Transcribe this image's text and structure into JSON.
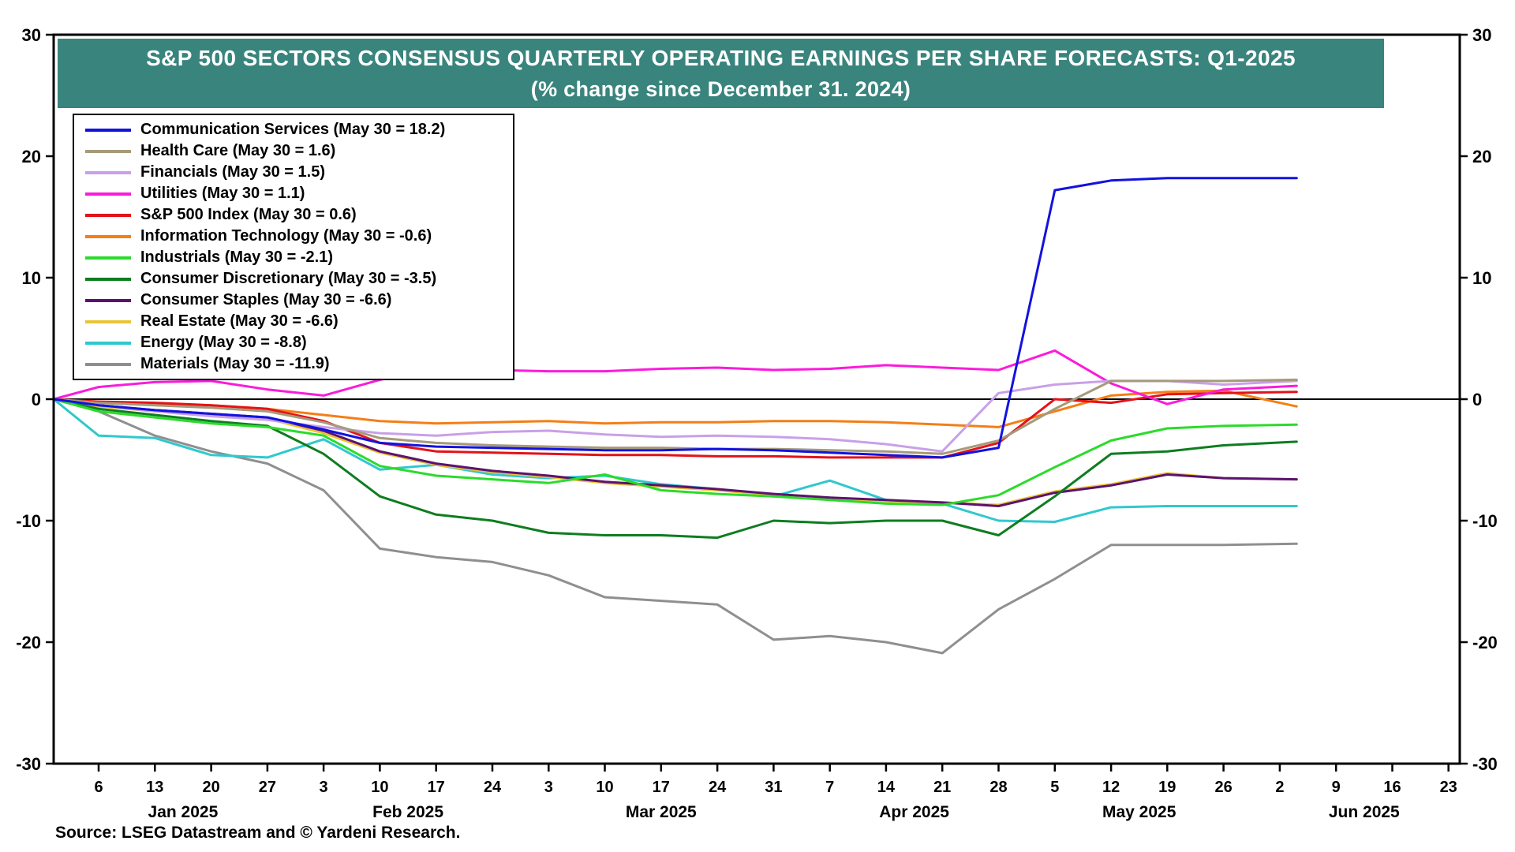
{
  "banner": {
    "title": "S&P 500 SECTORS CONSENSUS QUARTERLY OPERATING EARNINGS PER SHARE FORECASTS: Q1-2025",
    "subtitle": "(% change since December 31. 2024)",
    "background": "#39847D"
  },
  "source_note": "Source: LSEG Datastream and © Yardeni Research.",
  "chart_data": {
    "type": "line",
    "title": "S&P 500 SECTORS CONSENSUS QUARTERLY OPERATING EARNINGS PER SHARE FORECASTS: Q1-2025",
    "subtitle": "(% change since December 31. 2024)",
    "ylabel": "% change",
    "ylim": [
      -30,
      30
    ],
    "y_ticks": [
      30,
      20,
      10,
      0,
      -10,
      -20,
      -30
    ],
    "grid": false,
    "legend_position": "top-left",
    "x_range": [
      0.2,
      25.2
    ],
    "x_axis": {
      "tick_labels": [
        "6",
        "13",
        "20",
        "27",
        "3",
        "10",
        "17",
        "24",
        "3",
        "10",
        "17",
        "24",
        "31",
        "7",
        "14",
        "21",
        "28",
        "5",
        "12",
        "19",
        "26",
        "2",
        "9",
        "16",
        "23"
      ],
      "month_labels": [
        {
          "label": "Jan 2025",
          "week": 2.5
        },
        {
          "label": "Feb 2025",
          "week": 6.5
        },
        {
          "label": "Mar 2025",
          "week": 11
        },
        {
          "label": "Apr 2025",
          "week": 15.5
        },
        {
          "label": "May 2025",
          "week": 19.5
        },
        {
          "label": "Jun 2025",
          "week": 23.5
        }
      ]
    },
    "x_weeks": [
      0.2,
      1,
      2,
      3,
      4,
      5,
      6,
      7,
      8,
      9,
      10,
      11,
      12,
      13,
      14,
      15,
      16,
      17,
      18,
      19,
      20,
      21,
      22.3
    ],
    "series": [
      {
        "name": "Communication Services",
        "legend_label": "Communication Services (May 30 = 18.2)",
        "color": "#1212E0",
        "last_value": 18.2,
        "values": [
          0,
          -0.5,
          -0.9,
          -1.2,
          -1.5,
          -2.5,
          -3.6,
          -3.9,
          -4.0,
          -4.1,
          -4.2,
          -4.2,
          -4.1,
          -4.2,
          -4.4,
          -4.6,
          -4.8,
          -4.0,
          17.2,
          18.0,
          18.2,
          18.2,
          18.2
        ]
      },
      {
        "name": "Health Care",
        "legend_label": "Health Care (May 30 = 1.6)",
        "color": "#A69A7A",
        "last_value": 1.6,
        "values": [
          0,
          -0.3,
          -0.5,
          -0.7,
          -1.0,
          -1.9,
          -3.2,
          -3.6,
          -3.8,
          -3.9,
          -4.0,
          -4.0,
          -4.1,
          -4.1,
          -4.2,
          -4.3,
          -4.5,
          -3.4,
          -0.8,
          1.5,
          1.5,
          1.5,
          1.6
        ]
      },
      {
        "name": "Financials",
        "legend_label": "Financials (May 30 = 1.5)",
        "color": "#C9A0E8",
        "last_value": 1.5,
        "values": [
          0,
          -0.5,
          -1.0,
          -1.4,
          -1.7,
          -2.3,
          -2.8,
          -3.0,
          -2.7,
          -2.6,
          -2.9,
          -3.1,
          -3.0,
          -3.1,
          -3.3,
          -3.7,
          -4.3,
          0.5,
          1.2,
          1.5,
          1.5,
          1.2,
          1.5
        ]
      },
      {
        "name": "Utilities",
        "legend_label": "Utilities (May 30 = 1.1)",
        "color": "#FB1BDB",
        "last_value": 1.1,
        "values": [
          0,
          1.0,
          1.4,
          1.5,
          0.8,
          0.3,
          1.6,
          2.4,
          2.4,
          2.3,
          2.3,
          2.5,
          2.6,
          2.4,
          2.5,
          2.8,
          2.6,
          2.4,
          4.0,
          1.3,
          -0.4,
          0.8,
          1.1
        ]
      },
      {
        "name": "S&P 500 Index",
        "legend_label": "S&P 500 Index (May 30 = 0.6)",
        "color": "#E41219",
        "last_value": 0.6,
        "values": [
          0,
          -0.2,
          -0.3,
          -0.5,
          -0.8,
          -1.8,
          -3.6,
          -4.3,
          -4.4,
          -4.5,
          -4.6,
          -4.6,
          -4.7,
          -4.7,
          -4.8,
          -4.8,
          -4.8,
          -3.6,
          0.0,
          -0.3,
          0.4,
          0.5,
          0.6
        ]
      },
      {
        "name": "Information Technology",
        "legend_label": "Information Technology (May 30 = -0.6)",
        "color": "#F57E16",
        "last_value": -0.6,
        "values": [
          0,
          -0.3,
          -0.4,
          -0.5,
          -0.8,
          -1.3,
          -1.8,
          -2.0,
          -1.9,
          -1.8,
          -2.0,
          -1.9,
          -1.9,
          -1.8,
          -1.8,
          -1.9,
          -2.1,
          -2.3,
          -1.0,
          0.3,
          0.6,
          0.7,
          -0.6
        ]
      },
      {
        "name": "Industrials",
        "legend_label": "Industrials (May 30 = -2.1)",
        "color": "#2BDB2B",
        "last_value": -2.1,
        "values": [
          0,
          -1.0,
          -1.5,
          -2.0,
          -2.3,
          -3.0,
          -5.5,
          -6.3,
          -6.6,
          -6.9,
          -6.2,
          -7.5,
          -7.8,
          -8.0,
          -8.3,
          -8.6,
          -8.7,
          -7.9,
          -5.6,
          -3.4,
          -2.4,
          -2.2,
          -2.1
        ]
      },
      {
        "name": "Consumer Discretionary",
        "legend_label": "Consumer Discretionary (May 30 = -3.5)",
        "color": "#0E7D20",
        "last_value": -3.5,
        "values": [
          0,
          -0.8,
          -1.3,
          -1.8,
          -2.2,
          -4.5,
          -8.0,
          -9.5,
          -10.0,
          -11.0,
          -11.2,
          -11.2,
          -11.4,
          -10.0,
          -10.2,
          -10.0,
          -10.0,
          -11.2,
          -8.0,
          -4.5,
          -4.3,
          -3.8,
          -3.5
        ]
      },
      {
        "name": "Consumer Staples",
        "legend_label": "Consumer Staples (May 30 = -6.6)",
        "color": "#5C1270",
        "last_value": -6.6,
        "values": [
          0,
          -0.5,
          -0.9,
          -1.2,
          -1.5,
          -2.6,
          -4.3,
          -5.3,
          -5.9,
          -6.3,
          -6.8,
          -7.1,
          -7.4,
          -7.8,
          -8.1,
          -8.3,
          -8.5,
          -8.8,
          -7.7,
          -7.1,
          -6.2,
          -6.5,
          -6.6
        ]
      },
      {
        "name": "Real Estate",
        "legend_label": "Real Estate (May 30 = -6.6)",
        "color": "#EAC437",
        "last_value": -6.6,
        "values": [
          0,
          -0.6,
          -1.0,
          -1.3,
          -1.6,
          -2.8,
          -4.4,
          -5.4,
          -6.0,
          -6.4,
          -6.9,
          -7.2,
          -7.5,
          -7.9,
          -8.2,
          -8.4,
          -8.5,
          -8.7,
          -7.6,
          -7.0,
          -6.1,
          -6.5,
          -6.6
        ]
      },
      {
        "name": "Energy",
        "legend_label": "Energy (May 30 = -8.8)",
        "color": "#30C8CE",
        "last_value": -8.8,
        "values": [
          0,
          -3.0,
          -3.2,
          -4.6,
          -4.8,
          -3.3,
          -5.8,
          -5.4,
          -6.2,
          -6.5,
          -6.3,
          -7.0,
          -7.4,
          -8.0,
          -6.7,
          -8.3,
          -8.6,
          -10.0,
          -10.1,
          -8.9,
          -8.8,
          -8.8,
          -8.8
        ]
      },
      {
        "name": "Materials",
        "legend_label": "Materials (May 30 = -11.9)",
        "color": "#8F8F8F",
        "last_value": -11.9,
        "values": [
          0,
          -1.0,
          -3.0,
          -4.3,
          -5.3,
          -7.5,
          -12.3,
          -13.0,
          -13.4,
          -14.5,
          -16.3,
          -16.6,
          -16.9,
          -19.8,
          -19.5,
          -20.0,
          -20.9,
          -17.3,
          -14.8,
          -12.0,
          -12.0,
          -12.0,
          -11.9
        ]
      }
    ]
  }
}
